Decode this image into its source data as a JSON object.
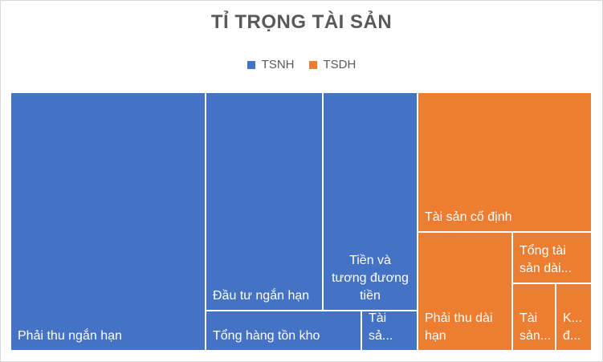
{
  "chart_data": {
    "type": "treemap",
    "title": "TỈ TRỌNG TÀI SẢN",
    "legend": [
      {
        "name": "TSNH",
        "color": "#4472c4"
      },
      {
        "name": "TSDH",
        "color": "#ed7d31"
      }
    ],
    "legend_position": "top",
    "groups": [
      {
        "name": "TSNH",
        "color": "#4472c4",
        "items": [
          {
            "label": "Phải thu ngắn hạn",
            "value": 108
          },
          {
            "label": "Đầu tư ngắn hạn",
            "value": 40
          },
          {
            "label": "Tổng hàng tồn kho",
            "value": 12
          },
          {
            "label": "Tài sả...",
            "value": 4
          },
          {
            "label": "Tiền và\ntương đương\ntiền",
            "value": 35
          }
        ]
      },
      {
        "name": "TSDH",
        "color": "#ed7d31",
        "items": [
          {
            "label": "Tài sản cố định",
            "value": 43
          },
          {
            "label": "Phải thu dài\nhạn",
            "value": 17
          },
          {
            "label": "Tổng tài\nsản dài...",
            "value": 6
          },
          {
            "label": "Tài\nsản...",
            "value": 3.5
          },
          {
            "label": "K...\nđ...",
            "value": 2
          }
        ]
      }
    ]
  }
}
